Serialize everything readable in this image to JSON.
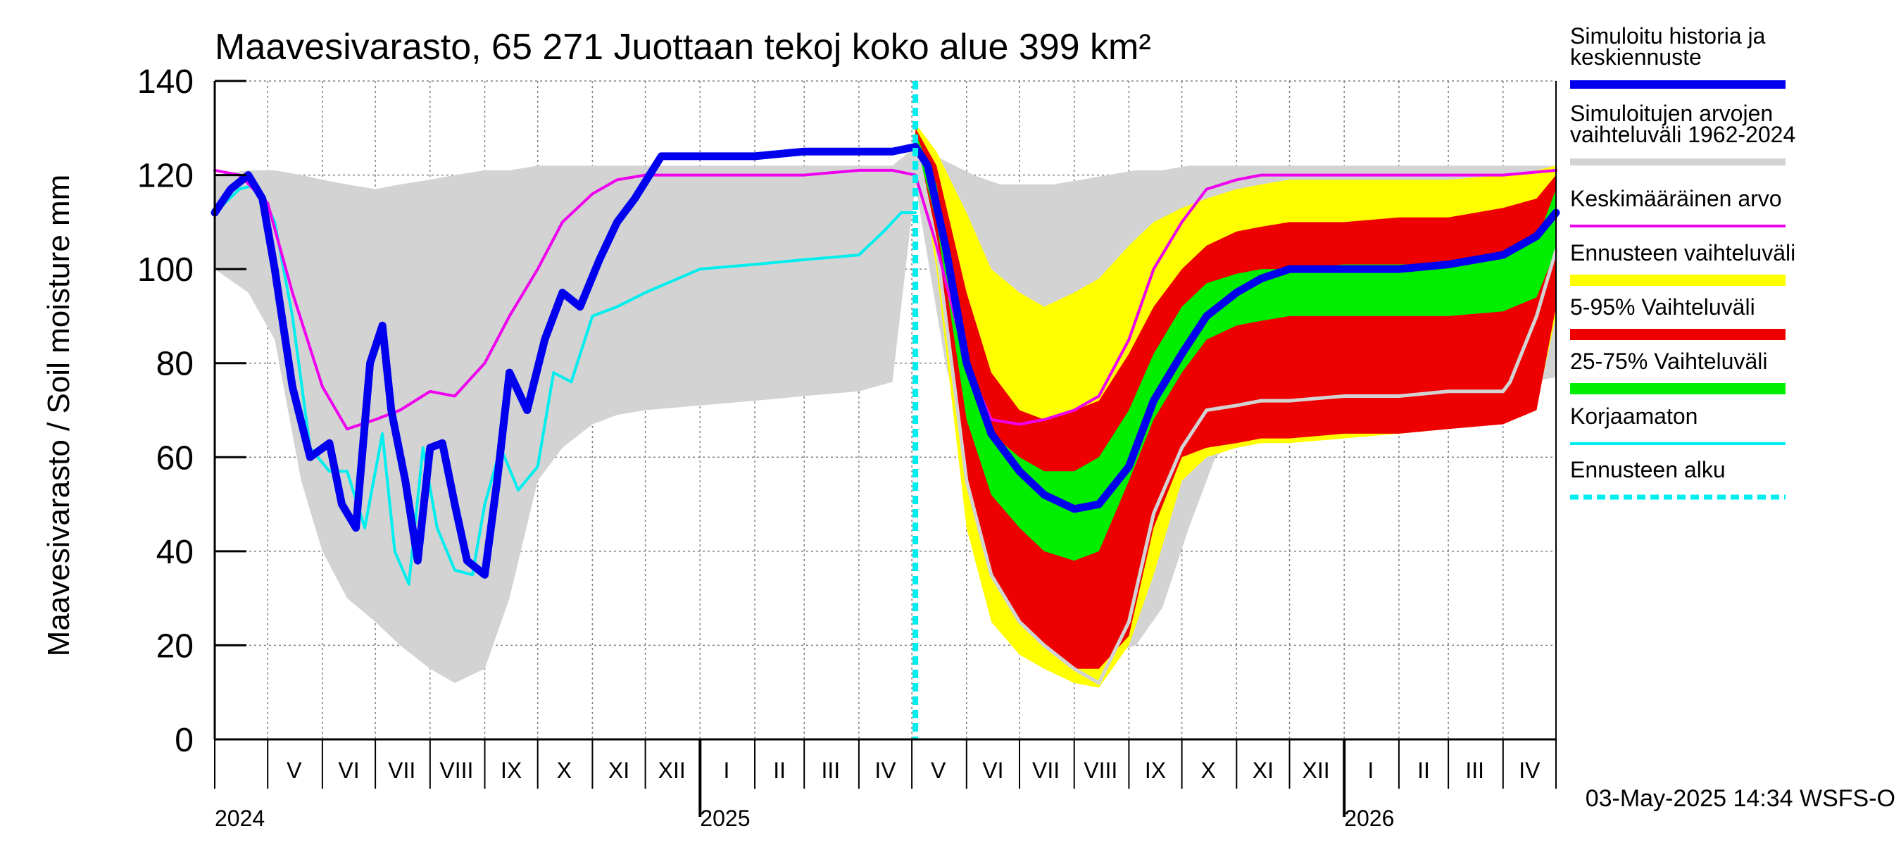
{
  "chart_data": {
    "type": "area",
    "title": "Maavesivarasto, 65 271 Juottaan tekoj koko alue 399 km²",
    "ylabel": "Maavesivarasto / Soil moisture   mm",
    "ylim": [
      0,
      140
    ],
    "yticks": [
      0,
      20,
      40,
      60,
      80,
      100,
      120,
      140
    ],
    "x_start": "2024-04-01",
    "x_end": "2026-05-01",
    "forecast_start": "2025-05-03",
    "month_labels": [
      {
        "label": "V",
        "date": "2024-05-16"
      },
      {
        "label": "VI",
        "date": "2024-06-16"
      },
      {
        "label": "VII",
        "date": "2024-07-16"
      },
      {
        "label": "VIII",
        "date": "2024-08-16"
      },
      {
        "label": "IX",
        "date": "2024-09-16"
      },
      {
        "label": "X",
        "date": "2024-10-16"
      },
      {
        "label": "XI",
        "date": "2024-11-16"
      },
      {
        "label": "XII",
        "date": "2024-12-16"
      },
      {
        "label": "I",
        "date": "2025-01-16"
      },
      {
        "label": "II",
        "date": "2025-02-15"
      },
      {
        "label": "III",
        "date": "2025-03-16"
      },
      {
        "label": "IV",
        "date": "2025-04-16"
      },
      {
        "label": "V",
        "date": "2025-05-16"
      },
      {
        "label": "VI",
        "date": "2025-06-16"
      },
      {
        "label": "VII",
        "date": "2025-07-16"
      },
      {
        "label": "VIII",
        "date": "2025-08-16"
      },
      {
        "label": "IX",
        "date": "2025-09-16"
      },
      {
        "label": "X",
        "date": "2025-10-16"
      },
      {
        "label": "XI",
        "date": "2025-11-16"
      },
      {
        "label": "XII",
        "date": "2025-12-16"
      },
      {
        "label": "I",
        "date": "2026-01-16"
      },
      {
        "label": "II",
        "date": "2026-02-15"
      },
      {
        "label": "III",
        "date": "2026-03-16"
      },
      {
        "label": "IV",
        "date": "2026-04-16"
      }
    ],
    "year_labels": [
      {
        "label": "2024",
        "date": "2024-04-01"
      },
      {
        "label": "2025",
        "date": "2025-01-01"
      },
      {
        "label": "2026",
        "date": "2026-01-01"
      }
    ],
    "footer": "03-May-2025 14:34 WSFS-O",
    "colors": {
      "history": "#0000ee",
      "sim_range": "#d3d3d3",
      "mean": "#ee00ee",
      "fc_range": "#ffff00",
      "p5_95": "#ee0000",
      "p25_75": "#00ee00",
      "uncorrected": "#00eeee",
      "forecast_start": "#00eeee",
      "grid": "#808080"
    },
    "series": [
      {
        "name": "Simuloitujen arvojen vaihteluväli 1962-2024",
        "kind": "band",
        "x": [
          "2024-04-01",
          "2024-04-20",
          "2024-05-05",
          "2024-05-20",
          "2024-06-01",
          "2024-06-15",
          "2024-07-01",
          "2024-07-15",
          "2024-08-01",
          "2024-08-15",
          "2024-09-01",
          "2024-09-15",
          "2024-10-01",
          "2024-10-15",
          "2024-11-01",
          "2024-11-15",
          "2024-12-01",
          "2025-01-01",
          "2025-02-01",
          "2025-03-01",
          "2025-04-01",
          "2025-04-20",
          "2025-05-03",
          "2025-05-20",
          "2025-06-05",
          "2025-06-20",
          "2025-07-05",
          "2025-07-20",
          "2025-08-05",
          "2025-08-20",
          "2025-09-05",
          "2025-09-20",
          "2025-10-05",
          "2025-10-20",
          "2025-11-05",
          "2025-11-20",
          "2025-12-05",
          "2026-01-01",
          "2026-02-01",
          "2026-03-01",
          "2026-04-01",
          "2026-05-01"
        ],
        "low": [
          100,
          95,
          85,
          55,
          40,
          30,
          25,
          20,
          15,
          12,
          15,
          30,
          55,
          62,
          67,
          69,
          70,
          71,
          72,
          73,
          74,
          76,
          118,
          80,
          55,
          35,
          25,
          22,
          20,
          18,
          20,
          28,
          45,
          60,
          65,
          68,
          70,
          72,
          73,
          74,
          75,
          77
        ],
        "high": [
          120,
          121,
          121,
          120,
          119,
          118,
          117,
          118,
          119,
          120,
          121,
          121,
          122,
          122,
          122,
          122,
          122,
          122,
          122,
          122,
          122,
          122,
          126,
          123,
          120,
          118,
          118,
          118,
          119,
          120,
          121,
          121,
          122,
          122,
          122,
          122,
          122,
          122,
          122,
          122,
          122,
          122
        ]
      },
      {
        "name": "Ennusteen vaihteluväli",
        "kind": "band",
        "x": [
          "2025-05-03",
          "2025-05-15",
          "2025-06-01",
          "2025-06-15",
          "2025-07-01",
          "2025-07-15",
          "2025-08-01",
          "2025-08-15",
          "2025-09-01",
          "2025-09-15",
          "2025-10-01",
          "2025-10-15",
          "2025-11-01",
          "2025-11-15",
          "2025-12-01",
          "2026-01-01",
          "2026-02-01",
          "2026-03-01",
          "2026-04-01",
          "2026-04-20",
          "2026-05-01"
        ],
        "low": [
          128,
          100,
          45,
          25,
          18,
          15,
          12,
          11,
          20,
          35,
          55,
          60,
          62,
          63,
          63,
          64,
          65,
          66,
          68,
          71,
          90
        ],
        "high": [
          131,
          125,
          112,
          100,
          95,
          92,
          95,
          98,
          105,
          110,
          113,
          115,
          117,
          118,
          119,
          119,
          119,
          119,
          120,
          121,
          122
        ]
      },
      {
        "name": "5-95% Vaihteluväli",
        "kind": "band",
        "x": [
          "2025-05-03",
          "2025-05-15",
          "2025-06-01",
          "2025-06-15",
          "2025-07-01",
          "2025-07-15",
          "2025-08-01",
          "2025-08-15",
          "2025-09-01",
          "2025-09-15",
          "2025-10-01",
          "2025-10-15",
          "2025-11-01",
          "2025-11-15",
          "2025-12-01",
          "2026-01-01",
          "2026-02-01",
          "2026-03-01",
          "2026-04-01",
          "2026-04-20",
          "2026-05-01"
        ],
        "low": [
          127,
          105,
          55,
          35,
          25,
          20,
          15,
          15,
          22,
          45,
          60,
          62,
          63,
          64,
          64,
          65,
          65,
          66,
          67,
          70,
          92
        ],
        "high": [
          130,
          122,
          95,
          78,
          70,
          68,
          70,
          72,
          82,
          92,
          100,
          105,
          108,
          109,
          110,
          110,
          111,
          111,
          113,
          115,
          120
        ]
      },
      {
        "name": "25-75% Vaihteluväli",
        "kind": "band",
        "x": [
          "2025-05-03",
          "2025-05-15",
          "2025-06-01",
          "2025-06-15",
          "2025-07-01",
          "2025-07-15",
          "2025-08-01",
          "2025-08-15",
          "2025-09-01",
          "2025-09-15",
          "2025-10-01",
          "2025-10-15",
          "2025-11-01",
          "2025-11-15",
          "2025-12-01",
          "2026-01-01",
          "2026-02-01",
          "2026-03-01",
          "2026-04-01",
          "2026-04-20",
          "2026-05-01"
        ],
        "low": [
          127,
          110,
          68,
          52,
          45,
          40,
          38,
          40,
          55,
          68,
          78,
          85,
          88,
          89,
          90,
          90,
          90,
          90,
          91,
          94,
          104
        ],
        "high": [
          129,
          118,
          80,
          65,
          60,
          57,
          57,
          60,
          70,
          82,
          92,
          97,
          99,
          100,
          100,
          101,
          101,
          101,
          103,
          106,
          117
        ]
      },
      {
        "name": "Keskimääräinen arvo",
        "kind": "line",
        "x": [
          "2024-04-01",
          "2024-04-15",
          "2024-05-01",
          "2024-05-15",
          "2024-06-01",
          "2024-06-15",
          "2024-07-01",
          "2024-07-15",
          "2024-08-01",
          "2024-08-15",
          "2024-09-01",
          "2024-09-15",
          "2024-10-01",
          "2024-10-15",
          "2024-11-01",
          "2024-11-15",
          "2024-12-01",
          "2025-01-01",
          "2025-02-01",
          "2025-03-01",
          "2025-04-01",
          "2025-04-20",
          "2025-05-03",
          "2025-05-15",
          "2025-06-01",
          "2025-06-15",
          "2025-07-01",
          "2025-07-15",
          "2025-08-01",
          "2025-08-15",
          "2025-09-01",
          "2025-09-15",
          "2025-10-01",
          "2025-10-15",
          "2025-11-01",
          "2025-11-15",
          "2025-12-01",
          "2026-01-01",
          "2026-02-01",
          "2026-03-01",
          "2026-04-01",
          "2026-05-01"
        ],
        "y": [
          121,
          120,
          114,
          95,
          75,
          66,
          68,
          70,
          74,
          73,
          80,
          90,
          100,
          110,
          116,
          119,
          120,
          120,
          120,
          120,
          121,
          121,
          120,
          105,
          80,
          68,
          67,
          68,
          70,
          73,
          85,
          100,
          110,
          117,
          119,
          120,
          120,
          120,
          120,
          120,
          120,
          121
        ]
      },
      {
        "name": "Korjaamaton",
        "kind": "line",
        "x": [
          "2024-04-01",
          "2024-04-15",
          "2024-04-25",
          "2024-05-05",
          "2024-05-15",
          "2024-05-25",
          "2024-06-05",
          "2024-06-15",
          "2024-06-25",
          "2024-07-05",
          "2024-07-12",
          "2024-07-20",
          "2024-07-28",
          "2024-08-05",
          "2024-08-15",
          "2024-08-25",
          "2024-09-01",
          "2024-09-10",
          "2024-09-20",
          "2024-10-01",
          "2024-10-10",
          "2024-10-20",
          "2024-11-01",
          "2024-11-15",
          "2024-12-01",
          "2025-01-01",
          "2025-02-01",
          "2025-03-01",
          "2025-04-01",
          "2025-04-15",
          "2025-04-25",
          "2025-05-03"
        ],
        "y": [
          112,
          117,
          118,
          110,
          90,
          62,
          57,
          57,
          45,
          65,
          40,
          33,
          62,
          45,
          36,
          35,
          50,
          62,
          53,
          58,
          78,
          76,
          90,
          92,
          95,
          100,
          101,
          102,
          103,
          108,
          112,
          112
        ]
      },
      {
        "name": "Simuloitu historia ja keskiennuste",
        "kind": "line",
        "x": [
          "2024-04-01",
          "2024-04-10",
          "2024-04-20",
          "2024-04-28",
          "2024-05-05",
          "2024-05-15",
          "2024-05-25",
          "2024-06-05",
          "2024-06-12",
          "2024-06-20",
          "2024-06-28",
          "2024-07-05",
          "2024-07-10",
          "2024-07-18",
          "2024-07-25",
          "2024-08-01",
          "2024-08-08",
          "2024-08-15",
          "2024-08-22",
          "2024-09-01",
          "2024-09-08",
          "2024-09-15",
          "2024-09-25",
          "2024-10-05",
          "2024-10-15",
          "2024-10-25",
          "2024-11-05",
          "2024-11-15",
          "2024-11-25",
          "2024-12-10",
          "2025-01-01",
          "2025-02-01",
          "2025-03-01",
          "2025-04-01",
          "2025-04-20",
          "2025-05-03",
          "2025-05-10",
          "2025-05-20",
          "2025-06-01",
          "2025-06-15",
          "2025-07-01",
          "2025-07-15",
          "2025-08-01",
          "2025-08-15",
          "2025-09-01",
          "2025-09-15",
          "2025-10-01",
          "2025-10-15",
          "2025-11-01",
          "2025-11-15",
          "2025-12-01",
          "2026-01-01",
          "2026-02-01",
          "2026-03-01",
          "2026-04-01",
          "2026-04-20",
          "2026-05-01"
        ],
        "y": [
          112,
          117,
          120,
          115,
          100,
          75,
          60,
          63,
          50,
          45,
          80,
          88,
          70,
          55,
          38,
          62,
          63,
          50,
          38,
          35,
          55,
          78,
          70,
          85,
          95,
          92,
          102,
          110,
          115,
          124,
          124,
          124,
          125,
          125,
          125,
          126,
          122,
          105,
          80,
          65,
          57,
          52,
          49,
          50,
          58,
          72,
          82,
          90,
          95,
          98,
          100,
          100,
          100,
          101,
          103,
          107,
          112
        ]
      },
      {
        "name": "Korjaamaton-ennuste",
        "kind": "line",
        "legend": false,
        "x": [
          "2025-05-03",
          "2025-05-15",
          "2025-06-01",
          "2025-06-15",
          "2025-07-01",
          "2025-07-15",
          "2025-08-01",
          "2025-08-15",
          "2025-09-01",
          "2025-09-15",
          "2025-10-01",
          "2025-10-15",
          "2025-11-01",
          "2025-11-15",
          "2025-12-01",
          "2026-01-01",
          "2026-02-01",
          "2026-03-01",
          "2026-04-01",
          "2026-04-05",
          "2026-04-20",
          "2026-05-01"
        ],
        "y": [
          127,
          105,
          55,
          35,
          25,
          20,
          15,
          12,
          25,
          48,
          62,
          70,
          71,
          72,
          72,
          73,
          73,
          74,
          74,
          76,
          90,
          104
        ]
      }
    ],
    "legend": {
      "placement": "right",
      "entries": [
        {
          "label": "Simuloitu historia ja\nkeskiennuste",
          "color": "#0000ee",
          "style": "thick"
        },
        {
          "label": "Simuloitujen arvojen\nvaihteluväli 1962-2024",
          "color": "#d3d3d3",
          "style": "medium"
        },
        {
          "label": "Keskimääräinen arvo",
          "color": "#ee00ee",
          "style": "thin"
        },
        {
          "label": "Ennusteen vaihteluväli",
          "color": "#ffff00",
          "style": "box"
        },
        {
          "label": "5-95% Vaihteluväli",
          "color": "#ee0000",
          "style": "box"
        },
        {
          "label": "25-75% Vaihteluväli",
          "color": "#00ee00",
          "style": "box"
        },
        {
          "label": "Korjaamaton",
          "color": "#00eeee",
          "style": "thin"
        },
        {
          "label": "Ennusteen alku",
          "color": "#00eeee",
          "style": "dashed"
        }
      ]
    }
  }
}
